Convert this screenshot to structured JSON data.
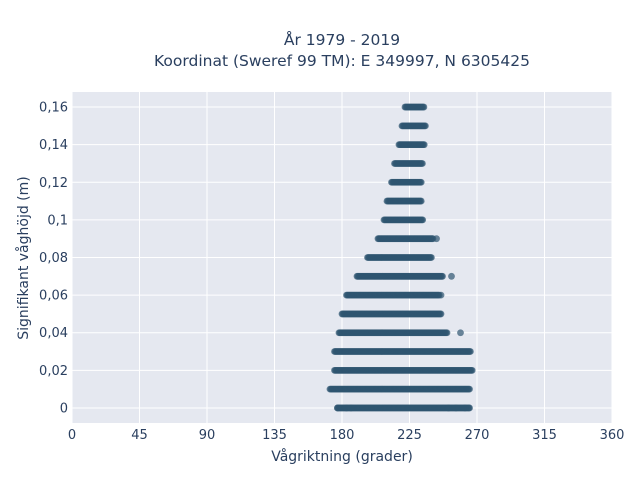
{
  "chart_data": {
    "type": "scatter",
    "title_line1": "År 1979 - 2019",
    "title_line2": "Koordinat (Sweref 99 TM): E 349997, N 6305425",
    "xlabel": "Vågriktning (grader)",
    "ylabel": "Signifikant våghöjd (m)",
    "xlim": [
      0,
      360
    ],
    "ylim": [
      -0.008,
      0.168
    ],
    "x_ticks": [
      0,
      45,
      90,
      135,
      180,
      225,
      270,
      315,
      360
    ],
    "x_tick_labels": [
      "0",
      "45",
      "90",
      "135",
      "180",
      "225",
      "270",
      "315",
      "360"
    ],
    "y_ticks": [
      0,
      0.02,
      0.04,
      0.06,
      0.08,
      0.1,
      0.12,
      0.14,
      0.16
    ],
    "y_tick_labels": [
      "0",
      "0,02",
      "0,04",
      "0,06",
      "0,08",
      "0,1",
      "0,12",
      "0,14",
      "0,16"
    ],
    "grid": true,
    "marker_color": "#2f5570",
    "plot_bg": "#e5e8f0",
    "series": [
      {
        "bands": [
          {
            "y": 0.0,
            "xmin": 177,
            "xmax": 265
          },
          {
            "y": 0.01,
            "xmin": 172,
            "xmax": 265
          },
          {
            "y": 0.02,
            "xmin": 175,
            "xmax": 267
          },
          {
            "y": 0.03,
            "xmin": 175,
            "xmax": 266
          },
          {
            "y": 0.04,
            "xmin": 178,
            "xmax": 250
          },
          {
            "y": 0.05,
            "xmin": 180,
            "xmax": 246
          },
          {
            "y": 0.06,
            "xmin": 183,
            "xmax": 245
          },
          {
            "y": 0.07,
            "xmin": 190,
            "xmax": 247
          },
          {
            "y": 0.08,
            "xmin": 197,
            "xmax": 240
          },
          {
            "y": 0.09,
            "xmin": 204,
            "xmax": 241
          },
          {
            "y": 0.1,
            "xmin": 208,
            "xmax": 234
          },
          {
            "y": 0.11,
            "xmin": 210,
            "xmax": 233
          },
          {
            "y": 0.12,
            "xmin": 213,
            "xmax": 233
          },
          {
            "y": 0.13,
            "xmin": 215,
            "xmax": 234
          },
          {
            "y": 0.14,
            "xmin": 218,
            "xmax": 235
          },
          {
            "y": 0.15,
            "xmin": 220,
            "xmax": 236
          },
          {
            "y": 0.16,
            "xmin": 222,
            "xmax": 235
          }
        ],
        "outliers": [
          {
            "x": 177,
            "y": 0.0
          },
          {
            "x": 183,
            "y": 0.0
          },
          {
            "x": 186,
            "y": 0.0
          },
          {
            "x": 251,
            "y": 0.0
          },
          {
            "x": 256,
            "y": 0.0
          },
          {
            "x": 262,
            "y": 0.0
          },
          {
            "x": 265,
            "y": 0.0
          },
          {
            "x": 259,
            "y": 0.04
          },
          {
            "x": 253,
            "y": 0.07
          },
          {
            "x": 246,
            "y": 0.06
          },
          {
            "x": 243,
            "y": 0.09
          }
        ]
      }
    ]
  }
}
